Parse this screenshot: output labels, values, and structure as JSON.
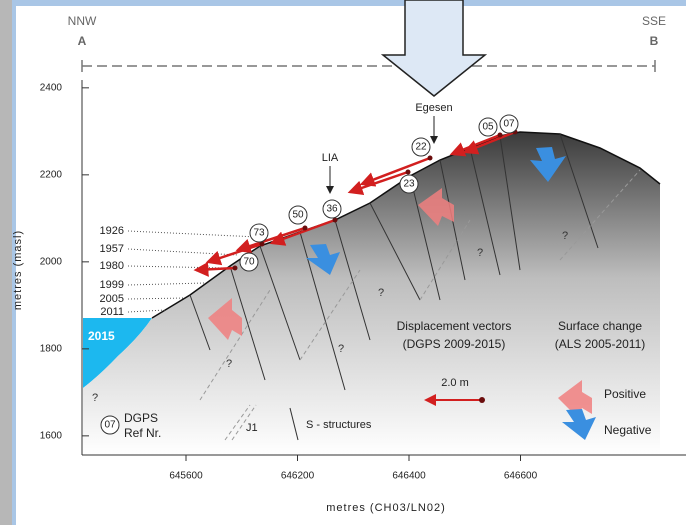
{
  "chart_data": {
    "type": "profile",
    "ylabel": "metres (masl)",
    "xlabel": "metres (CH03/LN02)",
    "ylim": [
      1556,
      2418
    ],
    "yticks": [
      1600,
      1800,
      2000,
      2200,
      2400
    ],
    "xtick_labels": [
      "645600",
      "646200",
      "646400",
      "646600"
    ],
    "start": {
      "direction": "NNW",
      "label": "A"
    },
    "end": {
      "direction": "SSE",
      "label": "B"
    },
    "years": [
      "1926",
      "1957",
      "1980",
      "1999",
      "2005",
      "2011",
      "2015"
    ],
    "stages": [
      "Egesen",
      "LIA"
    ],
    "points": [
      "05",
      "07",
      "22",
      "23",
      "36",
      "50",
      "73",
      "70"
    ],
    "unknown": "?",
    "legend": {
      "vectors_title": "Displacement vectors",
      "vectors_sub": "(DGPS 2009-2015)",
      "change_title": "Surface change",
      "change_sub": "(ALS 2005-2011)",
      "scale": "2.0 m",
      "positive": "Positive",
      "negative": "Negative",
      "ref_id": "07",
      "ref_label": [
        "DGPS",
        "Ref Nr."
      ],
      "joint": "J1",
      "structures": "S - structures"
    }
  }
}
